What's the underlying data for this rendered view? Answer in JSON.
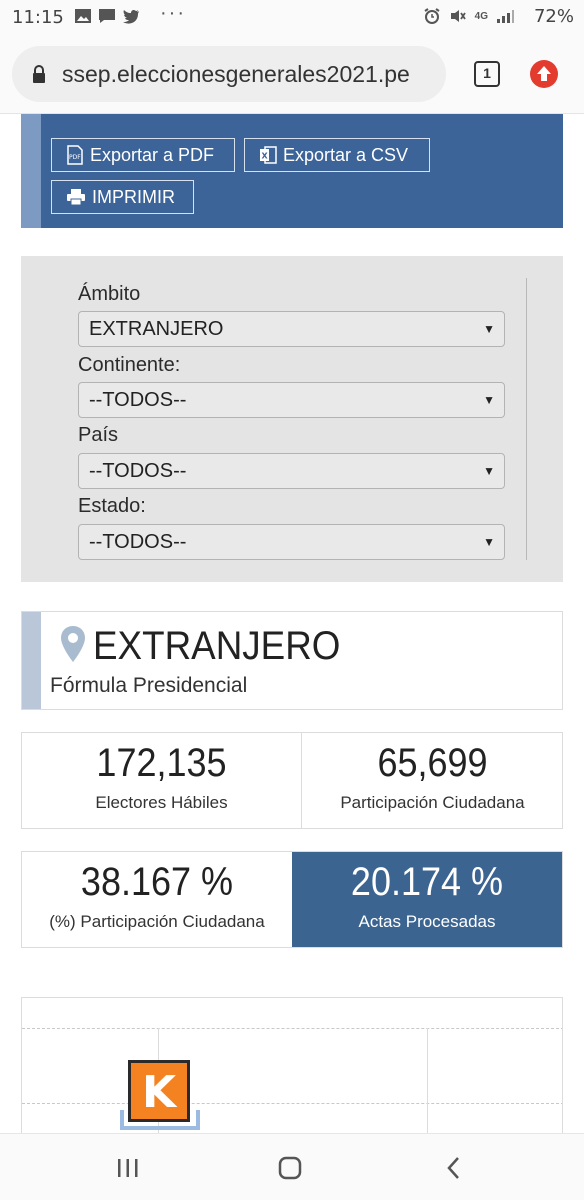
{
  "status_bar": {
    "time": "11:15",
    "dots": "···",
    "network": "4G",
    "battery": "72%",
    "icons": [
      "image-icon",
      "message-icon",
      "twitter-icon",
      "alarm-icon",
      "mute-icon",
      "signal-icon"
    ]
  },
  "browser": {
    "url": "ssep.eleccionesgenerales2021.pe",
    "tab_count": "1"
  },
  "export": {
    "pdf_label": "Exportar a PDF",
    "csv_label": "Exportar a CSV",
    "print_label": "IMPRIMIR"
  },
  "filters": {
    "ambito": {
      "label": "Ámbito",
      "value": "EXTRANJERO"
    },
    "continente": {
      "label": "Continente:",
      "value": "--TODOS--"
    },
    "pais": {
      "label": "País",
      "value": "--TODOS--"
    },
    "estado": {
      "label": "Estado:",
      "value": "--TODOS--"
    }
  },
  "location": {
    "title": "EXTRANJERO",
    "subtitle": "Fórmula Presidencial"
  },
  "stats": {
    "electores": {
      "value": "172,135",
      "label": "Electores Hábiles"
    },
    "participacion": {
      "value": "65,699",
      "label": "Participación Ciudadana"
    },
    "participacion_pct": {
      "value": "38.167 %",
      "label": "(%) Participación Ciudadana"
    },
    "actas_pct": {
      "value": "20.174 %",
      "label": "Actas Procesadas"
    }
  },
  "chart": {
    "logo_letter": "K"
  },
  "colors": {
    "panel_blue": "#3d6499",
    "filter_gray": "#e4e4e4",
    "logo_orange": "#f58220",
    "update_red": "#e33b2e"
  }
}
